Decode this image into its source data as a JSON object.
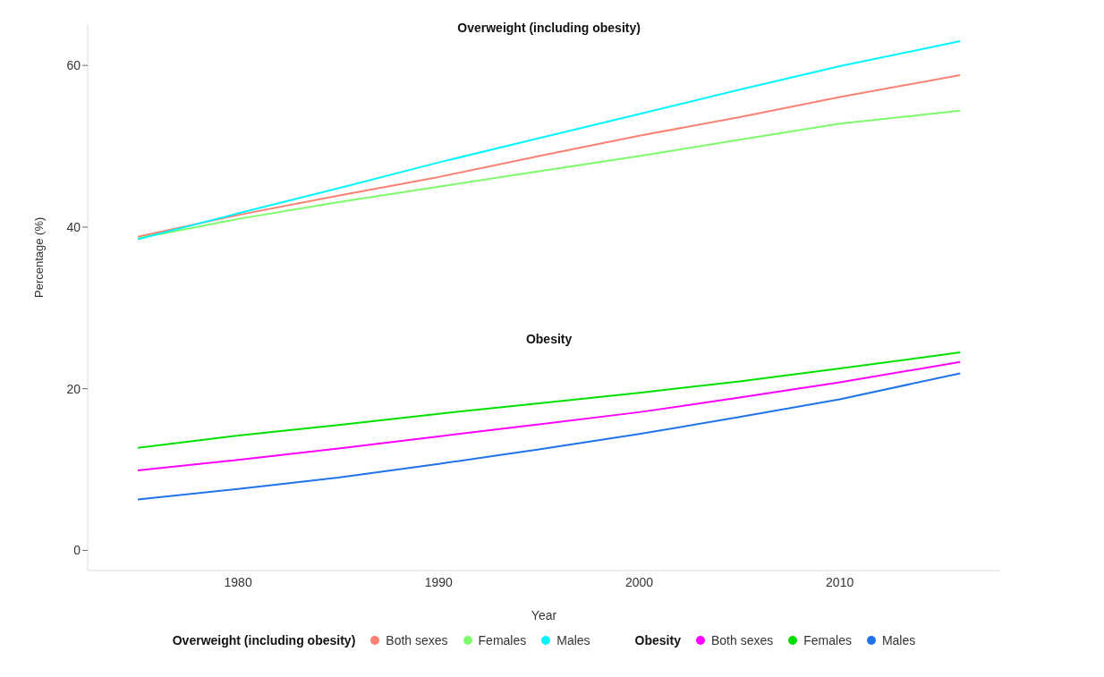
{
  "chart_data": {
    "type": "line",
    "xlabel": "Year",
    "ylabel": "Percentage (%)",
    "x": [
      1975,
      1980,
      1985,
      1990,
      1995,
      2000,
      2005,
      2010,
      2016
    ],
    "series": [
      {
        "name": "Both sexes",
        "color": "#fa8072",
        "values": [
          38.8,
          41.5,
          43.9,
          46.2,
          48.8,
          51.3,
          53.6,
          56.1,
          58.8
        ]
      },
      {
        "name": "Females",
        "color": "#7cfc6a",
        "values": [
          38.6,
          41.0,
          43.1,
          45.0,
          46.9,
          48.8,
          50.8,
          52.8,
          54.4
        ]
      },
      {
        "name": "Males",
        "color": "#00f5ff",
        "values": [
          38.5,
          41.7,
          44.8,
          48.0,
          51.0,
          54.0,
          57.0,
          59.9,
          63.0
        ]
      },
      {
        "name": "Both sexes",
        "color": "#ff00ff",
        "values": [
          9.9,
          11.2,
          12.6,
          14.1,
          15.6,
          17.1,
          18.9,
          20.8,
          23.3
        ]
      },
      {
        "name": "Females",
        "color": "#00e000",
        "values": [
          12.7,
          14.2,
          15.5,
          16.9,
          18.2,
          19.5,
          20.9,
          22.5,
          24.5
        ]
      },
      {
        "name": "Males",
        "color": "#1e74e8",
        "values": [
          6.3,
          7.6,
          9.0,
          10.7,
          12.5,
          14.4,
          16.5,
          18.7,
          21.9
        ]
      }
    ],
    "annotations": [
      "Overweight (including obesity)",
      "Obesity"
    ],
    "xlim": [
      1972.5,
      2018
    ],
    "xticks": [
      1980,
      1990,
      2000,
      2010
    ],
    "ylim": [
      -2.5,
      65
    ],
    "yticks": [
      0,
      20,
      40,
      60
    ],
    "grid": false,
    "legend": "bottom",
    "marker": "none",
    "line_style": "solid"
  }
}
